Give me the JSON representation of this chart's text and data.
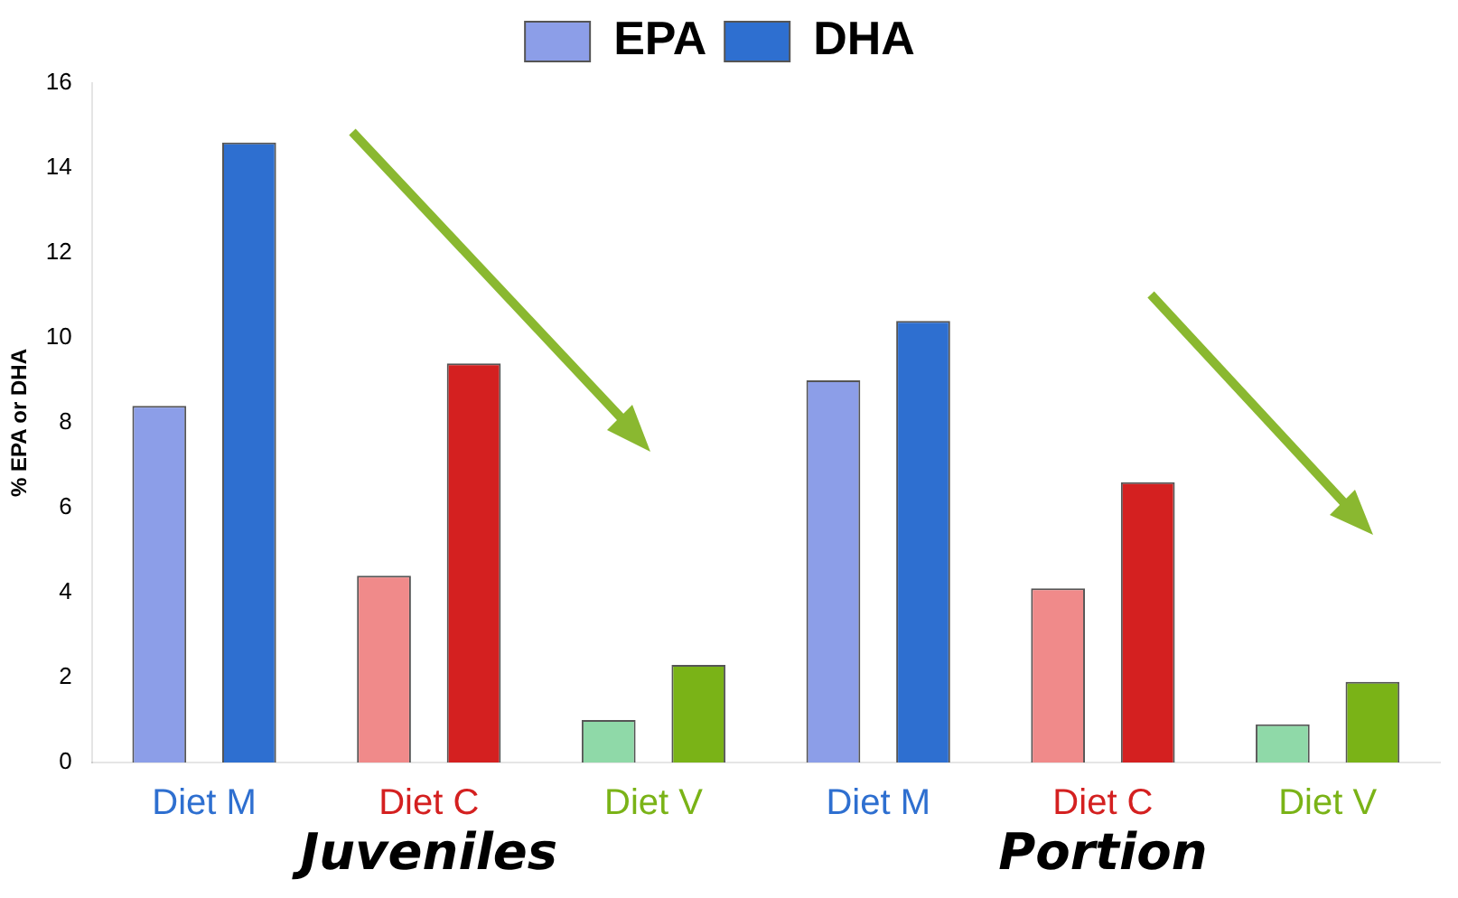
{
  "chart_data": {
    "type": "bar",
    "ylabel": "% EPA or DHA",
    "categories": [
      "Diet M",
      "Diet C",
      "Diet V",
      "Diet M",
      "Diet C",
      "Diet V"
    ],
    "series": [
      {
        "name": "EPA",
        "colors": [
          "#8c9ee8",
          "#f08a8a",
          "#8fd9a8",
          "#8c9ee8",
          "#f08a8a",
          "#8fd9a8"
        ],
        "values": [
          8.4,
          4.4,
          1.0,
          9.0,
          4.1,
          0.9
        ]
      },
      {
        "name": "DHA",
        "colors": [
          "#2e6fd0",
          "#d42020",
          "#7ab317",
          "#2e6fd0",
          "#d42020",
          "#7ab317"
        ],
        "values": [
          14.6,
          9.4,
          2.3,
          10.4,
          6.6,
          1.9
        ]
      }
    ],
    "annotations": [
      "Juveniles",
      "Portion"
    ],
    "ylim": [
      0,
      16
    ],
    "yticks": [
      0,
      2,
      4,
      6,
      8,
      10,
      12,
      14,
      16
    ],
    "grid": false,
    "legend": "top"
  }
}
